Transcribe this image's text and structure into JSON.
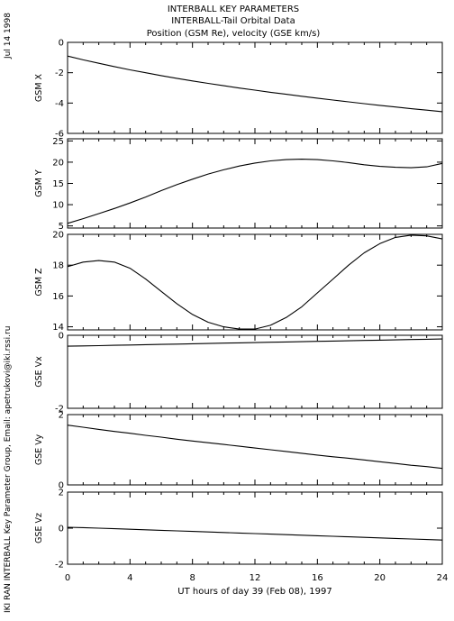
{
  "header": {
    "title": "INTERBALL KEY PARAMETERS",
    "subtitle": "INTERBALL-Tail Orbital Data",
    "description": "Position (GSM Re), velocity (GSE km/s)"
  },
  "side": {
    "date": "Jul 14 1998",
    "credit": "IKI RAN INTERBALL Key Parameter Group, Email: apetrukovi@iki.rssi.ru"
  },
  "chart_data": {
    "type": "line",
    "xlabel": "UT hours of day  39 (Feb 08), 1997",
    "xlim": [
      0,
      24
    ],
    "xticks": [
      0,
      4,
      8,
      12,
      16,
      20,
      24
    ],
    "x": [
      0,
      1,
      2,
      3,
      4,
      5,
      6,
      7,
      8,
      9,
      10,
      11,
      12,
      13,
      14,
      15,
      16,
      17,
      18,
      19,
      20,
      21,
      22,
      23,
      24
    ],
    "panels": [
      {
        "id": "gsm-x",
        "ylabel": "GSM X",
        "ylim": [
          -6,
          0
        ],
        "yticks": [
          0,
          -2,
          -4,
          -6
        ],
        "values": [
          -0.9,
          -1.15,
          -1.38,
          -1.6,
          -1.81,
          -2.0,
          -2.19,
          -2.37,
          -2.54,
          -2.7,
          -2.86,
          -3.01,
          -3.15,
          -3.29,
          -3.42,
          -3.55,
          -3.68,
          -3.8,
          -3.92,
          -4.04,
          -4.15,
          -4.26,
          -4.37,
          -4.47,
          -4.57
        ]
      },
      {
        "id": "gsm-y",
        "ylabel": "GSM Y",
        "ylim": [
          4.5,
          25.5
        ],
        "yticks": [
          5,
          10,
          15,
          20,
          25
        ],
        "values": [
          5.6,
          6.7,
          7.9,
          9.1,
          10.4,
          11.8,
          13.3,
          14.7,
          16.0,
          17.2,
          18.2,
          19.1,
          19.8,
          20.3,
          20.6,
          20.7,
          20.6,
          20.3,
          19.9,
          19.4,
          19.0,
          18.8,
          18.7,
          18.9,
          19.7
        ]
      },
      {
        "id": "gsm-z",
        "ylabel": "GSM Z",
        "ylim": [
          13.8,
          20.0
        ],
        "yticks": [
          14,
          16,
          18,
          20
        ],
        "values": [
          17.9,
          18.2,
          18.3,
          18.2,
          17.8,
          17.1,
          16.3,
          15.5,
          14.8,
          14.3,
          14.0,
          13.85,
          13.85,
          14.1,
          14.6,
          15.3,
          16.2,
          17.1,
          18.0,
          18.8,
          19.4,
          19.8,
          19.95,
          19.9,
          19.7
        ]
      },
      {
        "id": "gse-vx",
        "ylabel": "GSE Vx",
        "ylim": [
          -2,
          0
        ],
        "yticks": [
          0,
          -2
        ],
        "values": [
          -0.3,
          -0.291,
          -0.283,
          -0.275,
          -0.266,
          -0.258,
          -0.25,
          -0.241,
          -0.233,
          -0.225,
          -0.216,
          -0.208,
          -0.2,
          -0.191,
          -0.183,
          -0.175,
          -0.166,
          -0.158,
          -0.15,
          -0.141,
          -0.133,
          -0.125,
          -0.116,
          -0.108,
          -0.1
        ]
      },
      {
        "id": "gse-vy",
        "ylabel": "GSE Vy",
        "ylim": [
          0,
          2
        ],
        "yticks": [
          2,
          0
        ],
        "values": [
          1.7,
          1.64,
          1.58,
          1.52,
          1.47,
          1.41,
          1.36,
          1.3,
          1.25,
          1.2,
          1.15,
          1.1,
          1.05,
          1.0,
          0.95,
          0.9,
          0.85,
          0.8,
          0.76,
          0.71,
          0.66,
          0.61,
          0.56,
          0.52,
          0.47
        ]
      },
      {
        "id": "gse-vz",
        "ylabel": "GSE Vz",
        "ylim": [
          -2,
          2
        ],
        "yticks": [
          2,
          0,
          -2
        ],
        "values": [
          0.05,
          0.03,
          0.0,
          -0.03,
          -0.06,
          -0.09,
          -0.12,
          -0.15,
          -0.18,
          -0.21,
          -0.24,
          -0.27,
          -0.3,
          -0.33,
          -0.36,
          -0.39,
          -0.42,
          -0.45,
          -0.48,
          -0.51,
          -0.54,
          -0.57,
          -0.6,
          -0.63,
          -0.66
        ]
      }
    ]
  }
}
